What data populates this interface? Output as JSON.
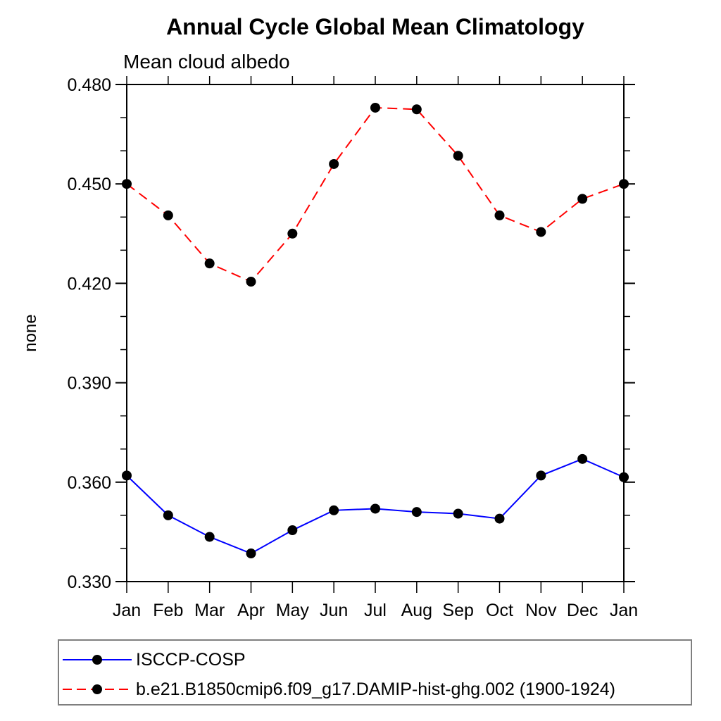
{
  "title": "Annual Cycle Global Mean Climatology",
  "subtitle": "Mean cloud albedo",
  "chart_data": {
    "type": "line",
    "x_categories": [
      "Jan",
      "Feb",
      "Mar",
      "Apr",
      "May",
      "Jun",
      "Jul",
      "Aug",
      "Sep",
      "Oct",
      "Nov",
      "Dec",
      "Jan"
    ],
    "xlabel": "",
    "ylabel": "none",
    "ylim": [
      0.33,
      0.48
    ],
    "yticks_major": [
      0.33,
      0.36,
      0.39,
      0.42,
      0.45,
      0.48
    ],
    "ytick_labels": [
      "0.330",
      "0.360",
      "0.390",
      "0.420",
      "0.450",
      "0.480"
    ],
    "ytick_minor_step": 0.01,
    "grid": false,
    "legend_position": "bottom-left-boxed",
    "marker": "filled-circle",
    "marker_color": "#000000",
    "axis_color": "#000000",
    "series": [
      {
        "name": "ISCCP-COSP",
        "color": "#0000ff",
        "line_style": "solid",
        "values": [
          0.362,
          0.35,
          0.3435,
          0.3385,
          0.3455,
          0.3515,
          0.352,
          0.351,
          0.3505,
          0.349,
          0.362,
          0.367,
          0.3615
        ]
      },
      {
        "name": "b.e21.B1850cmip6.f09_g17.DAMIP-hist-ghg.002 (1900-1924)",
        "color": "#ff0000",
        "line_style": "dashed",
        "values": [
          0.45,
          0.4405,
          0.426,
          0.4205,
          0.435,
          0.456,
          0.473,
          0.4725,
          0.4585,
          0.4405,
          0.4355,
          0.4455,
          0.45
        ]
      }
    ]
  }
}
